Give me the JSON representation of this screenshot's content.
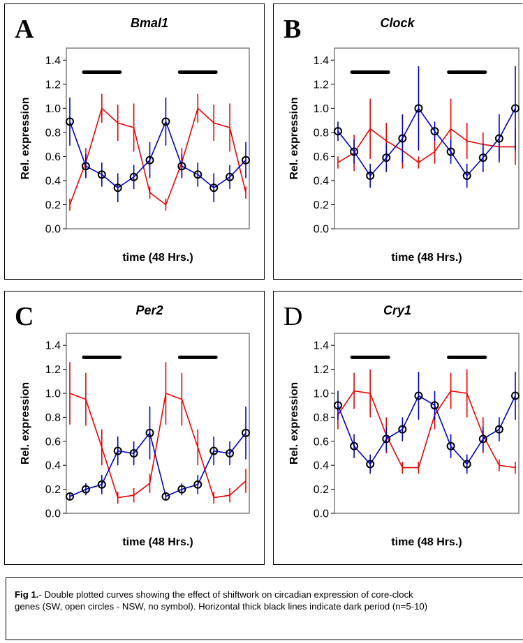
{
  "chart_data": [
    {
      "type": "line",
      "panel_letter": "A",
      "title": "Bmal1",
      "xlabel": "time (48 Hrs.)",
      "ylabel": "Rel. expression",
      "ylim": [
        0,
        1.5
      ],
      "yticks": [
        "0.0",
        "0.2",
        "0.4",
        "0.6",
        "0.8",
        "1.0",
        "1.2",
        "1.4"
      ],
      "dark_bar_y": 1.3,
      "series": [
        {
          "color": "#0000cc",
          "marker": "open-circle",
          "values": [
            0.89,
            0.52,
            0.45,
            0.34,
            0.43,
            0.57,
            0.89,
            0.52,
            0.45,
            0.34,
            0.43,
            0.57
          ],
          "err": [
            0.2,
            0.1,
            0.1,
            0.12,
            0.1,
            0.15,
            0.2,
            0.1,
            0.1,
            0.12,
            0.1,
            0.15
          ]
        },
        {
          "color": "#ee0000",
          "marker": "none",
          "values": [
            0.2,
            0.55,
            1.0,
            0.88,
            0.84,
            0.3,
            0.2,
            0.55,
            1.0,
            0.88,
            0.84,
            0.3
          ],
          "err": [
            0.05,
            0.12,
            0.12,
            0.15,
            0.2,
            0.05,
            0.05,
            0.12,
            0.12,
            0.15,
            0.2,
            0.05
          ]
        }
      ]
    },
    {
      "type": "line",
      "panel_letter": "B",
      "title": "Clock",
      "xlabel": "time (48 Hrs.)",
      "ylabel": "Rel. expression",
      "ylim": [
        0,
        1.5
      ],
      "yticks": [
        "0.0",
        "0.2",
        "0.4",
        "0.6",
        "0.8",
        "1.0",
        "1.2",
        "1.4"
      ],
      "dark_bar_y": 1.3,
      "series": [
        {
          "color": "#0000cc",
          "marker": "open-circle",
          "values": [
            0.81,
            0.64,
            0.44,
            0.59,
            0.75,
            1.0,
            0.81,
            0.64,
            0.44,
            0.59,
            0.75,
            1.0
          ],
          "err": [
            0.08,
            0.1,
            0.1,
            0.12,
            0.2,
            0.35,
            0.08,
            0.1,
            0.1,
            0.12,
            0.2,
            0.35
          ]
        },
        {
          "color": "#ee0000",
          "marker": "none",
          "values": [
            0.55,
            0.63,
            0.83,
            0.73,
            0.65,
            0.55,
            0.64,
            0.83,
            0.73,
            0.7,
            0.68,
            0.68
          ],
          "err": [
            0.05,
            0.15,
            0.25,
            0.15,
            0.15,
            0.05,
            0.1,
            0.25,
            0.15,
            0.1,
            0.1,
            0.15
          ]
        }
      ]
    },
    {
      "type": "line",
      "panel_letter": "C",
      "title": "Per2",
      "xlabel": "time (48 Hrs.)",
      "ylabel": "Rel. expression",
      "ylim": [
        0,
        1.5
      ],
      "yticks": [
        "0.0",
        "0.2",
        "0.4",
        "0.6",
        "0.8",
        "1.0",
        "1.2",
        "1.4"
      ],
      "dark_bar_y": 1.3,
      "series": [
        {
          "color": "#0000cc",
          "marker": "open-circle",
          "values": [
            0.14,
            0.2,
            0.24,
            0.52,
            0.5,
            0.67,
            0.14,
            0.2,
            0.24,
            0.52,
            0.5,
            0.67
          ],
          "err": [
            0.03,
            0.05,
            0.08,
            0.12,
            0.1,
            0.22,
            0.03,
            0.05,
            0.08,
            0.12,
            0.1,
            0.22
          ]
        },
        {
          "color": "#ee0000",
          "marker": "none",
          "values": [
            1.0,
            0.95,
            0.55,
            0.13,
            0.15,
            0.25,
            1.0,
            0.95,
            0.55,
            0.13,
            0.15,
            0.27
          ],
          "err": [
            0.26,
            0.22,
            0.15,
            0.05,
            0.06,
            0.08,
            0.26,
            0.22,
            0.15,
            0.05,
            0.06,
            0.1
          ]
        }
      ]
    },
    {
      "type": "line",
      "panel_letter": "D",
      "title": "Cry1",
      "xlabel": "time (48 Hrs.)",
      "ylabel": "Rel. expression",
      "ylim": [
        0,
        1.5
      ],
      "yticks": [
        "0.0",
        "0.2",
        "0.4",
        "0.6",
        "0.8",
        "1.0",
        "1.2",
        "1.4"
      ],
      "dark_bar_y": 1.3,
      "series": [
        {
          "color": "#0000cc",
          "marker": "open-circle",
          "values": [
            0.9,
            0.56,
            0.41,
            0.62,
            0.7,
            0.98,
            0.9,
            0.56,
            0.41,
            0.62,
            0.7,
            0.98
          ],
          "err": [
            0.12,
            0.1,
            0.08,
            0.1,
            0.1,
            0.2,
            0.12,
            0.1,
            0.08,
            0.1,
            0.1,
            0.2
          ]
        },
        {
          "color": "#ee0000",
          "marker": "none",
          "values": [
            0.82,
            1.02,
            1.0,
            0.65,
            0.38,
            0.38,
            0.82,
            1.02,
            1.0,
            0.65,
            0.4,
            0.38
          ],
          "err": [
            0.12,
            0.15,
            0.2,
            0.15,
            0.05,
            0.05,
            0.12,
            0.15,
            0.2,
            0.15,
            0.05,
            0.05
          ]
        }
      ]
    }
  ],
  "caption": {
    "label": "Fig 1.",
    "text": "- Double plotted curves showing the effect of shiftwork on circadian expression of core-clock genes (SW, open circles - NSW, no symbol). Horizontal thick black lines indicate dark period (n=5-10)"
  }
}
